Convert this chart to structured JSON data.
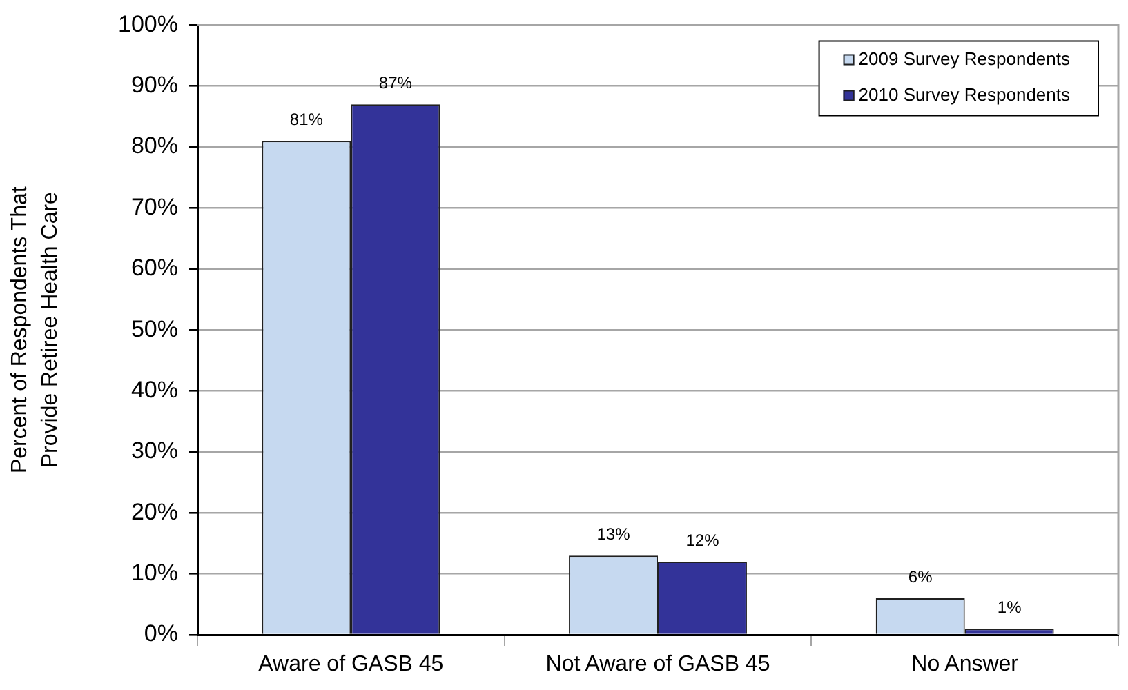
{
  "chart_data": {
    "type": "bar",
    "ylabel": "Percent of Respondents That\nProvide Retiree Health Care",
    "categories": [
      "Aware of GASB 45",
      "Not Aware of GASB 45",
      "No Answer"
    ],
    "series": [
      {
        "name": "2009 Survey Respondents",
        "color": "#c6d9f0",
        "values": [
          81,
          13,
          6
        ],
        "value_labels": [
          "81%",
          "13%",
          "6%"
        ]
      },
      {
        "name": "2010 Survey Respondents",
        "color": "#333399",
        "values": [
          87,
          12,
          1
        ],
        "value_labels": [
          "87%",
          "12%",
          "1%"
        ]
      }
    ],
    "ylim": [
      0,
      100
    ],
    "yticks": [
      {
        "value": 0,
        "label": "0%"
      },
      {
        "value": 10,
        "label": "10%"
      },
      {
        "value": 20,
        "label": "20%"
      },
      {
        "value": 30,
        "label": "30%"
      },
      {
        "value": 40,
        "label": "40%"
      },
      {
        "value": 50,
        "label": "50%"
      },
      {
        "value": 60,
        "label": "60%"
      },
      {
        "value": 70,
        "label": "70%"
      },
      {
        "value": 80,
        "label": "80%"
      },
      {
        "value": 90,
        "label": "90%"
      },
      {
        "value": 100,
        "label": "100%"
      }
    ],
    "grid": "y",
    "legend": "top right"
  }
}
